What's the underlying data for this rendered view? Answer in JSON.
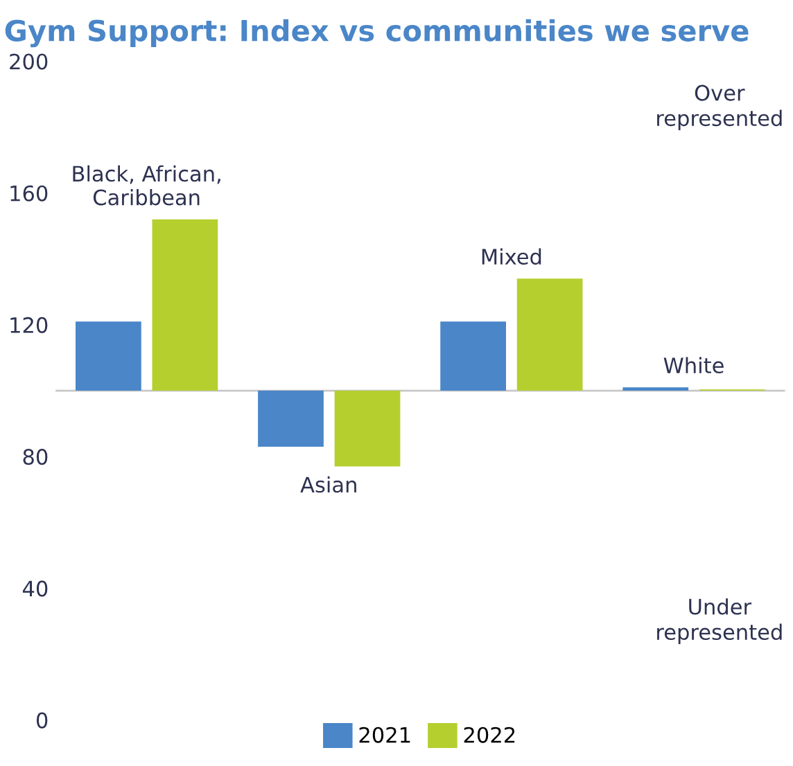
{
  "chart_data": {
    "type": "bar",
    "title": "Gym Support: Index vs communities we serve",
    "categories": [
      "Black, African,\nCaribbean",
      "Asian",
      "Mixed",
      "White"
    ],
    "series": [
      {
        "name": "2021",
        "color": "#4a86c8",
        "values": [
          21,
          -17,
          21,
          1
        ],
        "base": [
          100,
          100,
          100,
          100
        ]
      },
      {
        "name": "2022",
        "color": "#b5cf2f",
        "values": [
          52,
          -23,
          34,
          0.4
        ],
        "base": [
          100,
          100,
          100,
          100
        ]
      }
    ],
    "ylim": [
      0,
      200
    ],
    "yticks": [
      0,
      40,
      80,
      120,
      160,
      200
    ],
    "ref_lines": [
      {
        "axis": "y",
        "value": 100,
        "color": "#c8c8c8"
      }
    ],
    "annotations": [
      "Over\nrepresented",
      "Under\nrepresented"
    ],
    "grid": false,
    "legend": "bottom"
  }
}
